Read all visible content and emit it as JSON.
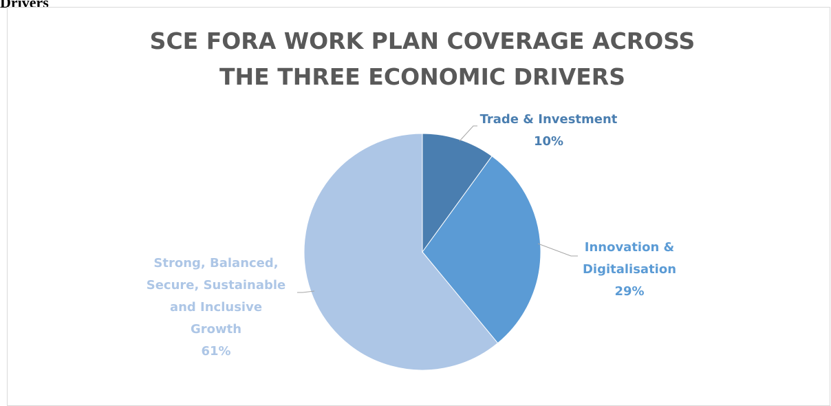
{
  "caption": "Drivers",
  "chart_data": {
    "type": "pie",
    "title": "SCE FORA WORK PLAN COVERAGE ACROSS THE THREE ECONOMIC DRIVERS",
    "categories": [
      "Trade & Investment",
      "Innovation & Digitalisation",
      "Strong, Balanced, Secure, Sustainable and Inclusive Growth"
    ],
    "values": [
      10,
      29,
      61
    ],
    "value_labels": [
      "10%",
      "29%",
      "61%"
    ],
    "colors": [
      "#4a7eb0",
      "#5b9bd5",
      "#adc6e6"
    ]
  }
}
